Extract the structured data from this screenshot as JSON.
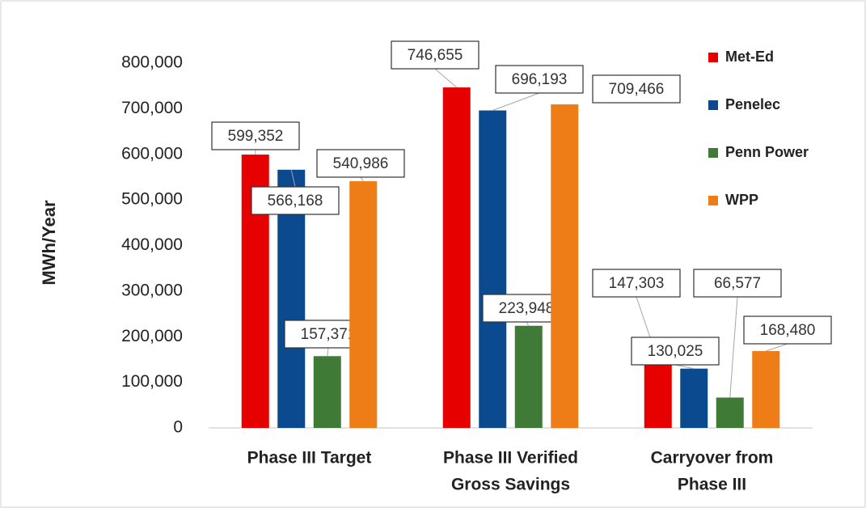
{
  "chart_data": {
    "type": "bar",
    "y_label": "MWh/Year",
    "categories": [
      [
        "Phase III Target"
      ],
      [
        "Phase III Verified",
        "Gross Savings"
      ],
      [
        "Carryover from",
        "Phase III"
      ]
    ],
    "series": [
      {
        "name": "Met-Ed",
        "color": "#e60000",
        "values": [
          599352,
          746655,
          147303
        ],
        "value_labels": [
          "599,352",
          "746,655",
          "147,303"
        ]
      },
      {
        "name": "Penelec",
        "color": "#0b4a8f",
        "values": [
          566168,
          696193,
          130025
        ],
        "value_labels": [
          "566,168",
          "696,193",
          "130,025"
        ]
      },
      {
        "name": "Penn Power",
        "color": "#3f7a37",
        "values": [
          157371,
          223948,
          66577
        ],
        "value_labels": [
          "157,371",
          "223,948",
          "66,577"
        ]
      },
      {
        "name": "WPP",
        "color": "#ef7d17",
        "values": [
          540986,
          709466,
          168480
        ],
        "value_labels": [
          "540,986",
          "709,466",
          "168,480"
        ]
      }
    ],
    "ylim": [
      0,
      800000
    ],
    "yticks": [
      0,
      {
        "value": 100000,
        "label": "100,000"
      },
      {
        "value": 200000,
        "label": "200,000"
      },
      {
        "value": 300000,
        "label": "300,000"
      },
      {
        "value": 400000,
        "label": "400,000"
      },
      {
        "value": 500000,
        "label": "500,000"
      },
      {
        "value": 600000,
        "label": "600,000"
      },
      {
        "value": 700000,
        "label": "700,000"
      },
      {
        "value": 800000,
        "label": "800,000"
      }
    ],
    "legend": "right",
    "grid": false
  }
}
